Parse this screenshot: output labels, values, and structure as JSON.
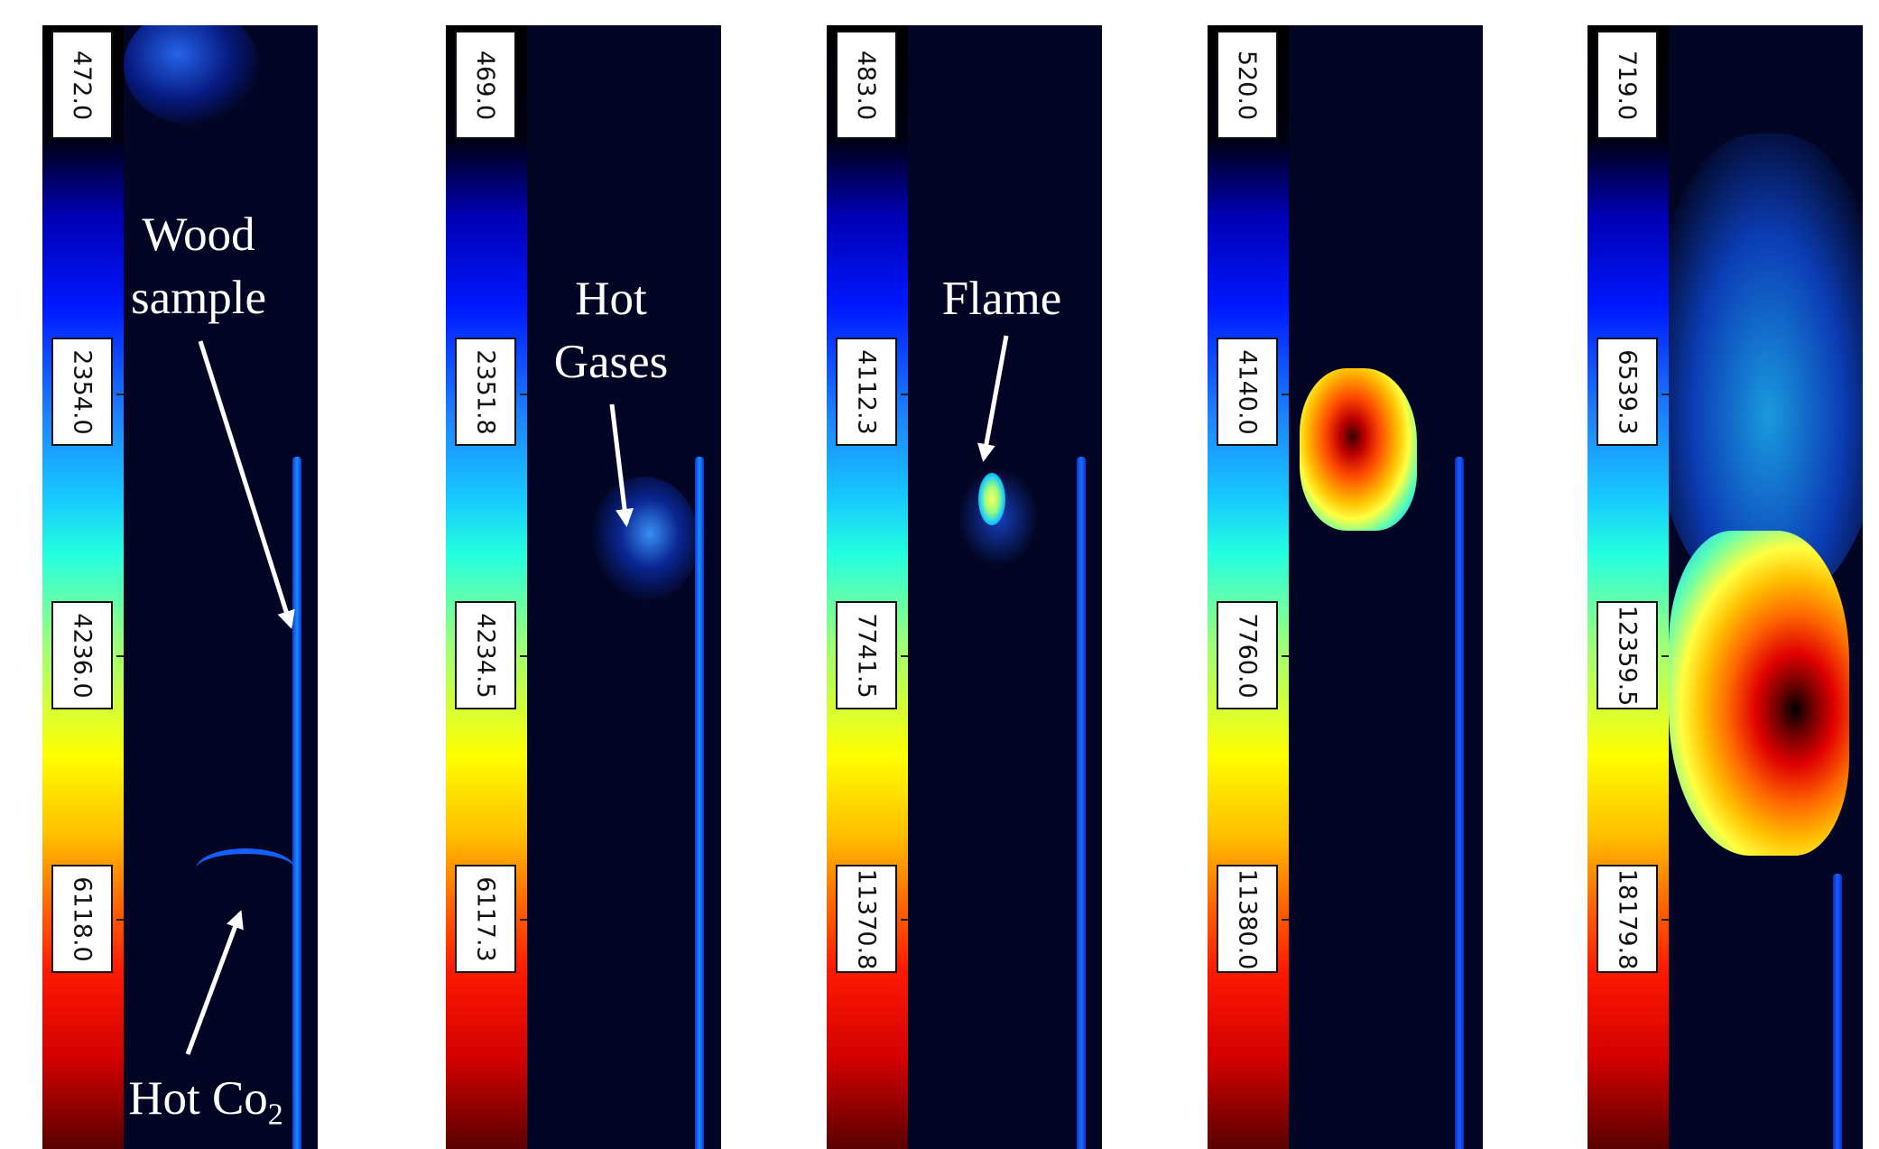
{
  "panels": [
    {
      "labels": [
        "472.0",
        "2354.0",
        "4236.0",
        "6118.0"
      ]
    },
    {
      "labels": [
        "469.0",
        "2351.8",
        "4234.5",
        "6117.3"
      ]
    },
    {
      "labels": [
        "483.0",
        "4112.3",
        "7741.5",
        "11370.8"
      ]
    },
    {
      "labels": [
        "520.0",
        "4140.0",
        "7760.0",
        "11380.0"
      ]
    },
    {
      "labels": [
        "719.0",
        "6539.3",
        "12359.5",
        "18179.8"
      ]
    }
  ],
  "annotations": {
    "wood_line1": "Wood",
    "wood_line2": "sample",
    "hot_co2_main": "Hot Co",
    "hot_co2_sub": "2",
    "hot_line1": "Hot",
    "hot_line2": "Gases",
    "flame": "Flame"
  },
  "colormap": [
    "#000000",
    "#0000b4",
    "#0018ff",
    "#16c8ff",
    "#22ffdf",
    "#ffff00",
    "#ff6a00",
    "#ff1a00",
    "#5a0000"
  ]
}
